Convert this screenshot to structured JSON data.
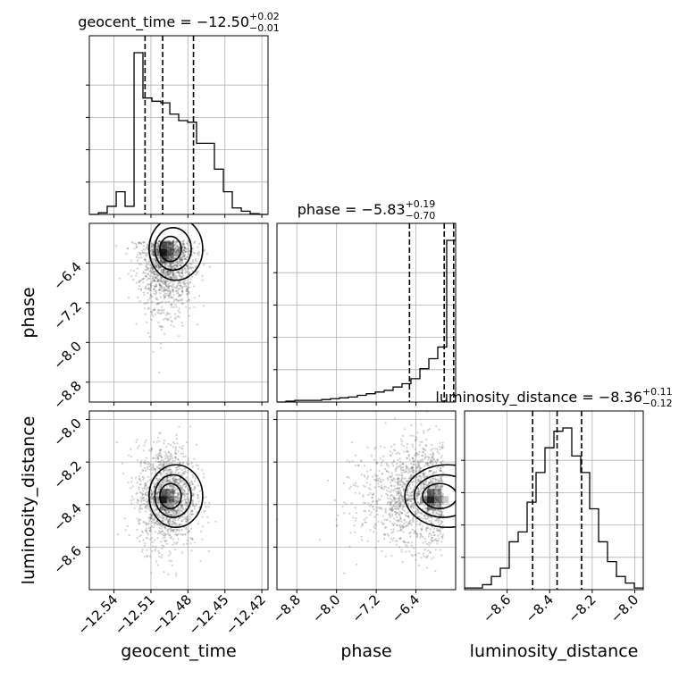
{
  "chart_data": {
    "type": "corner",
    "parameters": [
      {
        "key": "geocent_time",
        "axis_label": "geocent_time",
        "title_name": "geocent_time",
        "title_value": "−12.50",
        "title_plus": "+0.02",
        "title_minus": "−0.01",
        "range": [
          -12.56,
          -12.415
        ],
        "ticks": [
          -12.54,
          -12.51,
          -12.48,
          -12.45,
          -12.42
        ],
        "tick_labels": [
          "−12.54",
          "−12.51",
          "−12.48",
          "−12.45",
          "−12.42"
        ],
        "quantiles": [
          -12.5148,
          -12.5005,
          -12.4755
        ],
        "hist_edges": [
          -12.56,
          -12.5527,
          -12.5455,
          -12.5382,
          -12.531,
          -12.5237,
          -12.5165,
          -12.5092,
          -12.502,
          -12.4947,
          -12.4875,
          -12.4802,
          -12.473,
          -12.4657,
          -12.4585,
          -12.4512,
          -12.444,
          -12.4367,
          -12.4295,
          -12.4222,
          -12.415
        ],
        "hist_counts": [
          0,
          0.01,
          0.05,
          0.14,
          0.05,
          1.0,
          0.72,
          0.7,
          0.69,
          0.62,
          0.58,
          0.57,
          0.44,
          0.44,
          0.28,
          0.14,
          0.04,
          0.02,
          0.005,
          0
        ]
      },
      {
        "key": "phase",
        "axis_label": "phase",
        "title_name": "phase",
        "title_value": "−5.83",
        "title_plus": "+0.19",
        "title_minus": "−0.70",
        "range": [
          -9.2,
          -5.6
        ],
        "ticks": [
          -8.8,
          -8.0,
          -7.2,
          -6.4
        ],
        "tick_labels": [
          "−8.8",
          "−8.0",
          "−7.2",
          "−6.4"
        ],
        "quantiles": [
          -6.53,
          -5.83,
          -5.64
        ],
        "hist_edges": [
          -9.2,
          -9.02,
          -8.84,
          -8.66,
          -8.48,
          -8.3,
          -8.12,
          -7.94,
          -7.76,
          -7.58,
          -7.4,
          -7.22,
          -7.04,
          -6.86,
          -6.68,
          -6.5,
          -6.32,
          -6.14,
          -5.96,
          -5.78,
          -5.6
        ],
        "hist_counts": [
          0,
          0.005,
          0.01,
          0.01,
          0.01,
          0.015,
          0.02,
          0.025,
          0.03,
          0.04,
          0.05,
          0.06,
          0.07,
          0.09,
          0.11,
          0.14,
          0.2,
          0.26,
          0.33,
          0.97
        ]
      },
      {
        "key": "luminosity_distance",
        "axis_label": "luminosity_distance",
        "title_name": "luminosity_distance",
        "title_value": "−8.36",
        "title_plus": "+0.11",
        "title_minus": "−0.12",
        "range": [
          -8.8,
          -7.96
        ],
        "ticks": [
          -8.6,
          -8.4,
          -8.2,
          -8.0
        ],
        "tick_labels": [
          "−8.6",
          "−8.4",
          "−8.2",
          "−8.0"
        ],
        "quantiles": [
          -8.48,
          -8.365,
          -8.25
        ],
        "hist_edges": [
          -8.8,
          -8.758,
          -8.716,
          -8.674,
          -8.632,
          -8.59,
          -8.548,
          -8.506,
          -8.464,
          -8.422,
          -8.38,
          -8.338,
          -8.296,
          -8.254,
          -8.212,
          -8.17,
          -8.128,
          -8.086,
          -8.044,
          -8.002,
          -7.96
        ],
        "hist_counts": [
          0.01,
          0.01,
          0.03,
          0.08,
          0.13,
          0.29,
          0.35,
          0.53,
          0.71,
          0.86,
          0.96,
          0.98,
          0.81,
          0.71,
          0.49,
          0.29,
          0.17,
          0.08,
          0.04,
          0.01
        ]
      }
    ],
    "pairs": [
      {
        "x": "geocent_time",
        "y": "phase",
        "mean": [
          -12.497,
          -5.95
        ],
        "sd": [
          0.011,
          0.55
        ],
        "skew_y": -1
      },
      {
        "x": "geocent_time",
        "y": "luminosity_distance",
        "mean": [
          -12.497,
          -8.36
        ],
        "sd": [
          0.012,
          0.12
        ],
        "skew_y": 0
      },
      {
        "x": "phase",
        "y": "luminosity_distance",
        "mean": [
          -5.85,
          -8.36
        ],
        "sd": [
          0.6,
          0.12
        ],
        "skew_x": -1
      }
    ],
    "grid": true
  }
}
